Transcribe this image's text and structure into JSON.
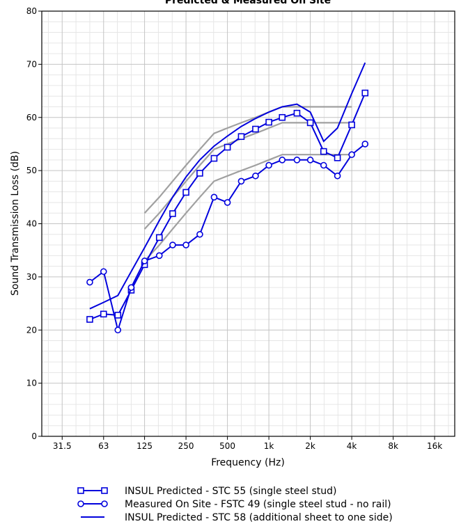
{
  "chart_data": {
    "type": "line",
    "title": "Predicted & Measured On Site",
    "xlabel": "Frequency (Hz)",
    "ylabel": "Sound Transmission Loss (dB)",
    "x_scale": "log",
    "x_ticks": [
      {
        "value": 31.5,
        "label": "31.5"
      },
      {
        "value": 63,
        "label": "63"
      },
      {
        "value": 125,
        "label": "125"
      },
      {
        "value": 250,
        "label": "250"
      },
      {
        "value": 500,
        "label": "500"
      },
      {
        "value": 1000,
        "label": "1k"
      },
      {
        "value": 2000,
        "label": "2k"
      },
      {
        "value": 4000,
        "label": "4k"
      },
      {
        "value": 8000,
        "label": "8k"
      },
      {
        "value": 16000,
        "label": "16k"
      }
    ],
    "xlim": [
      22.4,
      22400
    ],
    "ylim": [
      0,
      80
    ],
    "y_ticks": [
      0,
      10,
      20,
      30,
      40,
      50,
      60,
      70,
      80
    ],
    "grid": true,
    "legend_position": "bottom",
    "series": [
      {
        "name": "INSUL Predicted - STC 55 (single steel stud)",
        "marker": "square",
        "color": "#0000dd",
        "x": [
          50,
          63,
          80,
          100,
          125,
          160,
          200,
          250,
          315,
          400,
          500,
          630,
          800,
          1000,
          1250,
          1600,
          2000,
          2500,
          3150,
          4000,
          5000
        ],
        "y": [
          22,
          23,
          22.8,
          27.5,
          32.3,
          37.4,
          41.9,
          45.9,
          49.5,
          52.3,
          54.4,
          56.4,
          57.8,
          59.1,
          60,
          60.8,
          59,
          53.6,
          52.4,
          58.6,
          64.6
        ]
      },
      {
        "name": "Measured On Site - FSTC 49 (single steel stud - no rail)",
        "marker": "circle",
        "color": "#0000dd",
        "x": [
          50,
          63,
          80,
          100,
          125,
          160,
          200,
          250,
          315,
          400,
          500,
          630,
          800,
          1000,
          1250,
          1600,
          2000,
          2500,
          3150,
          4000,
          5000
        ],
        "y": [
          29,
          31,
          20,
          28,
          33,
          34,
          36,
          36,
          38,
          45,
          44,
          48,
          49,
          51,
          52,
          52,
          52,
          51,
          49,
          53,
          55
        ]
      },
      {
        "name": "INSUL Predicted - STC 58 (additional sheet to one side)",
        "marker": "none",
        "color": "#0000dd",
        "x": [
          50,
          63,
          80,
          100,
          125,
          160,
          200,
          250,
          315,
          400,
          500,
          630,
          800,
          1000,
          1250,
          1600,
          2000,
          2500,
          3150,
          4000,
          5000
        ],
        "y": [
          24,
          25.2,
          26.5,
          31,
          35.5,
          40.6,
          45,
          48.8,
          52,
          54.6,
          56.5,
          58.3,
          59.8,
          61,
          62,
          62.5,
          61,
          55.5,
          58,
          64.5,
          70.3
        ]
      }
    ],
    "reference_contours": [
      {
        "color": "#a0a0a0",
        "x": [
          125,
          160,
          200,
          250,
          315,
          400,
          500,
          630,
          800,
          1000,
          1250,
          1600,
          2000,
          2500,
          3150,
          4000
        ],
        "y": [
          42,
          45,
          48,
          51,
          54,
          57,
          58,
          59,
          60,
          61,
          62,
          62,
          62,
          62,
          62,
          62
        ]
      },
      {
        "color": "#a0a0a0",
        "x": [
          125,
          160,
          200,
          250,
          315,
          400,
          500,
          630,
          800,
          1000,
          1250,
          1600,
          2000,
          2500,
          3150,
          4000
        ],
        "y": [
          39,
          42,
          45,
          48,
          51,
          54,
          55,
          56,
          57,
          58,
          59,
          59,
          59,
          59,
          59,
          59
        ]
      },
      {
        "color": "#a0a0a0",
        "x": [
          125,
          160,
          200,
          250,
          315,
          400,
          500,
          630,
          800,
          1000,
          1250,
          1600,
          2000,
          2500,
          3150,
          4000
        ],
        "y": [
          33,
          36,
          39,
          42,
          45,
          48,
          49,
          50,
          51,
          52,
          53,
          53,
          53,
          53,
          53,
          53
        ]
      }
    ]
  }
}
